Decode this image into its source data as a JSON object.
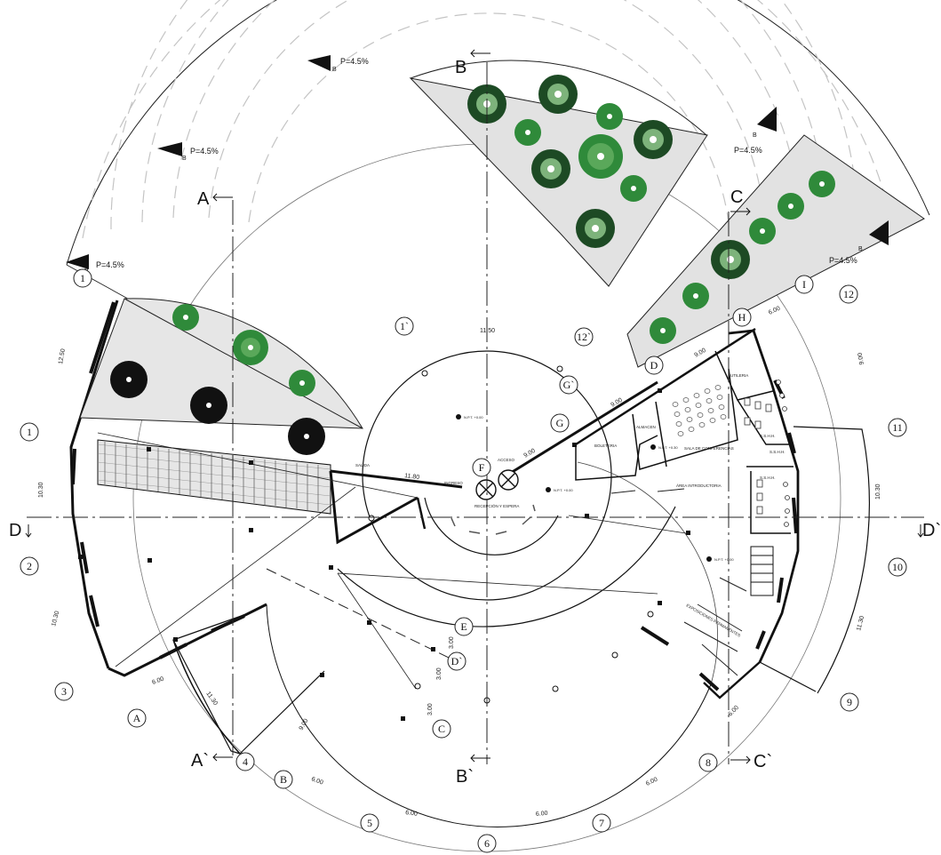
{
  "colors": {
    "line": "#111111",
    "dash": "#b9b9b9",
    "planter_fill": "#dcdcdc",
    "tree_green": "#2f8a3a",
    "tree_dark": "#111111"
  },
  "section_markers": {
    "A_top": "A",
    "A_bottom": "A`",
    "B_top": "B",
    "B_bottom": "B`",
    "C_top": "C",
    "C_bottom": "C`",
    "D_left": "D",
    "D_right": "D`"
  },
  "slopes": [
    "P=4.5%",
    "P=4.5%",
    "P=4.5%",
    "P=4.5%",
    "P=4.5%"
  ],
  "slope_sub": "B",
  "axis_numbers": [
    "1",
    "1",
    "2",
    "3",
    "4",
    "5",
    "6",
    "7",
    "8",
    "9",
    "10",
    "11",
    "12",
    "1`",
    "12`"
  ],
  "axis_letters": [
    "A",
    "B",
    "C",
    "D",
    "E",
    "F",
    "G",
    "H",
    "I",
    "D`",
    "G`"
  ],
  "dimensions": [
    "12.50",
    "10.30",
    "10.30",
    "6.00",
    "11.30",
    "9.00",
    "6.00",
    "6.00",
    "6.00",
    "6.00",
    "6.00",
    "11.30",
    "10.30",
    "9.00",
    "6.00",
    "9.00",
    "9.00",
    "9.00",
    "11.50",
    "11.80",
    "3.00",
    "3.00",
    "3.00"
  ],
  "rooms": {
    "biblioteca": "BOLETERIA",
    "almacen": "ALMACEN",
    "sala_conferencias": "SALA DE CONFERENCIAS",
    "utileria": "UTILERIA",
    "sshh_1": "S.S.H.H.",
    "sshh_2": "S.S.H.H.",
    "sshh_3": "S.S.H.H.",
    "area_introductoria": "ÁREA INTRODUCTORIA",
    "exposiciones": "EXPOSICIONES PERMANENTES",
    "recepcion": "RECEPCIÓN Y ESPERA",
    "salida": "SALIDA",
    "acceso": "ACCESO",
    "ingreso": "INGRESO"
  },
  "levels": [
    "N.P.T. +0.00",
    "N.P.T. +0.00",
    "N.P.T. +0.30",
    "N.P.T. +0.00"
  ]
}
